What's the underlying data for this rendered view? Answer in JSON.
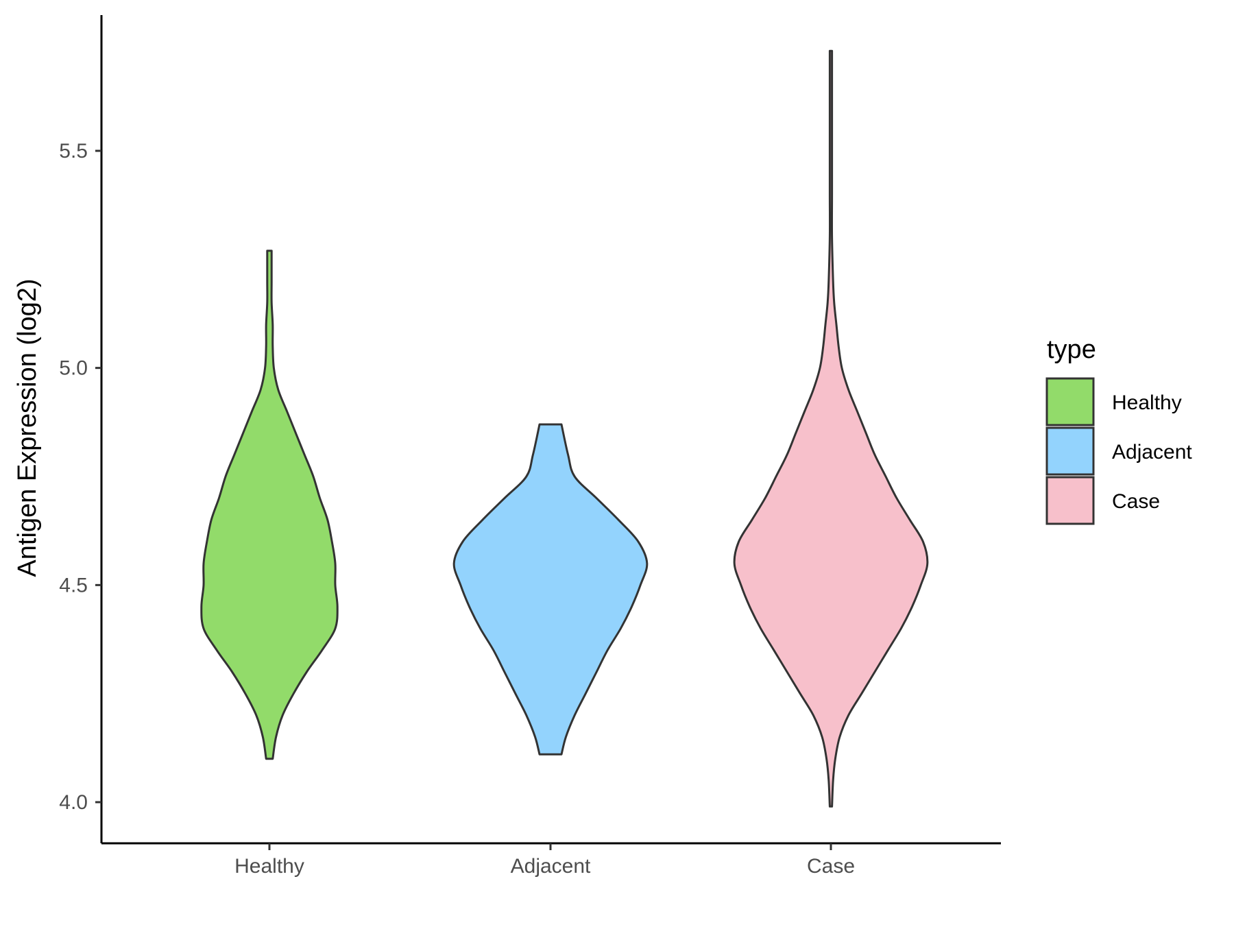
{
  "chart_data": {
    "type": "violin",
    "title": "",
    "xlabel": "",
    "ylabel": "Antigen Expression (log2)",
    "ylim": [
      3.9,
      5.8
    ],
    "yticks": [
      "4.0",
      "4.5",
      "5.0",
      "5.5"
    ],
    "categories": [
      "Healthy",
      "Adjacent",
      "Case"
    ],
    "grid": false,
    "legend": {
      "title": "type",
      "placement": "right",
      "entries": [
        {
          "label": "Healthy",
          "color": "#92DB6A"
        },
        {
          "label": "Adjacent",
          "color": "#93D3FD"
        },
        {
          "label": "Case",
          "color": "#F7C0CB"
        }
      ]
    },
    "series": [
      {
        "category": "Healthy",
        "color": "#92DB6A",
        "min": 4.1,
        "max": 5.27,
        "density": [
          [
            4.1,
            0.03
          ],
          [
            4.15,
            0.06
          ],
          [
            4.2,
            0.12
          ],
          [
            4.25,
            0.22
          ],
          [
            4.3,
            0.34
          ],
          [
            4.35,
            0.48
          ],
          [
            4.4,
            0.6
          ],
          [
            4.45,
            0.62
          ],
          [
            4.5,
            0.6
          ],
          [
            4.55,
            0.6
          ],
          [
            4.6,
            0.57
          ],
          [
            4.65,
            0.53
          ],
          [
            4.7,
            0.46
          ],
          [
            4.75,
            0.4
          ],
          [
            4.8,
            0.32
          ],
          [
            4.85,
            0.24
          ],
          [
            4.9,
            0.16
          ],
          [
            4.95,
            0.08
          ],
          [
            5.0,
            0.04
          ],
          [
            5.05,
            0.03
          ],
          [
            5.1,
            0.03
          ],
          [
            5.15,
            0.02
          ],
          [
            5.2,
            0.02
          ],
          [
            5.27,
            0.02
          ]
        ]
      },
      {
        "category": "Adjacent",
        "color": "#93D3FD",
        "min": 4.11,
        "max": 4.87,
        "density": [
          [
            4.11,
            0.1
          ],
          [
            4.15,
            0.14
          ],
          [
            4.2,
            0.22
          ],
          [
            4.25,
            0.32
          ],
          [
            4.3,
            0.42
          ],
          [
            4.35,
            0.52
          ],
          [
            4.4,
            0.64
          ],
          [
            4.45,
            0.74
          ],
          [
            4.5,
            0.82
          ],
          [
            4.55,
            0.88
          ],
          [
            4.6,
            0.8
          ],
          [
            4.65,
            0.62
          ],
          [
            4.7,
            0.42
          ],
          [
            4.75,
            0.22
          ],
          [
            4.8,
            0.16
          ],
          [
            4.87,
            0.1
          ]
        ]
      },
      {
        "category": "Case",
        "color": "#F7C0CB",
        "min": 3.99,
        "max": 5.73,
        "density": [
          [
            3.99,
            0.01
          ],
          [
            4.05,
            0.02
          ],
          [
            4.1,
            0.04
          ],
          [
            4.15,
            0.08
          ],
          [
            4.2,
            0.16
          ],
          [
            4.25,
            0.28
          ],
          [
            4.3,
            0.4
          ],
          [
            4.35,
            0.52
          ],
          [
            4.4,
            0.64
          ],
          [
            4.45,
            0.74
          ],
          [
            4.5,
            0.82
          ],
          [
            4.55,
            0.88
          ],
          [
            4.6,
            0.84
          ],
          [
            4.65,
            0.72
          ],
          [
            4.7,
            0.6
          ],
          [
            4.75,
            0.5
          ],
          [
            4.8,
            0.4
          ],
          [
            4.85,
            0.32
          ],
          [
            4.9,
            0.24
          ],
          [
            4.95,
            0.16
          ],
          [
            5.0,
            0.1
          ],
          [
            5.05,
            0.07
          ],
          [
            5.1,
            0.05
          ],
          [
            5.15,
            0.03
          ],
          [
            5.2,
            0.02
          ],
          [
            5.3,
            0.01
          ],
          [
            5.4,
            0.01
          ],
          [
            5.5,
            0.01
          ],
          [
            5.6,
            0.01
          ],
          [
            5.73,
            0.01
          ]
        ]
      }
    ]
  }
}
